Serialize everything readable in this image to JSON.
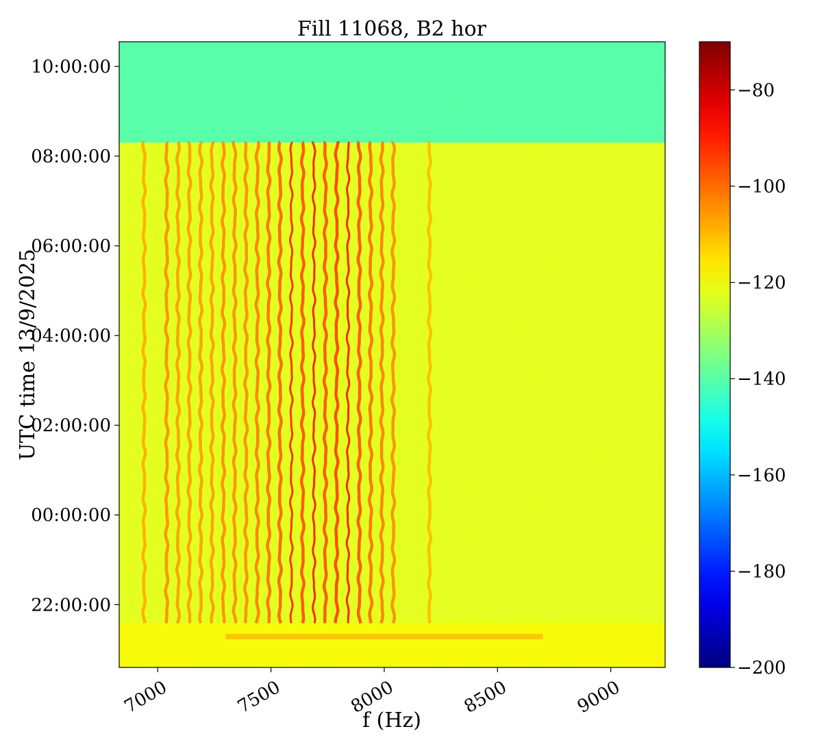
{
  "chart_data": {
    "type": "heatmap",
    "title": "Fill 11068, B2 hor",
    "xlabel": "f (Hz)",
    "ylabel": "UTC time 13/9/2025",
    "x_ticks": [
      {
        "value": 7000,
        "label": "7000"
      },
      {
        "value": 7500,
        "label": "7500"
      },
      {
        "value": 8000,
        "label": "8000"
      },
      {
        "value": 8500,
        "label": "8500"
      },
      {
        "value": 9000,
        "label": "9000"
      }
    ],
    "xlim": [
      6830,
      9240
    ],
    "y_ticks": [
      {
        "value": 10,
        "label": "10:00:00"
      },
      {
        "value": 8,
        "label": "08:00:00"
      },
      {
        "value": 6,
        "label": "06:00:00"
      },
      {
        "value": 4,
        "label": "04:00:00"
      },
      {
        "value": 2,
        "label": "02:00:00"
      },
      {
        "value": 0,
        "label": "00:00:00"
      },
      {
        "value": -2,
        "label": "22:00:00"
      }
    ],
    "ylim": [
      -3.4,
      10.55
    ],
    "colorbar": {
      "colormap": "jet",
      "range": [
        -200,
        -70
      ],
      "ticks": [
        {
          "value": -80,
          "label": "−80"
        },
        {
          "value": -100,
          "label": "−100"
        },
        {
          "value": -120,
          "label": "−120"
        },
        {
          "value": -140,
          "label": "−140"
        },
        {
          "value": -160,
          "label": "−160"
        },
        {
          "value": -180,
          "label": "−180"
        },
        {
          "value": -200,
          "label": "−200"
        }
      ]
    },
    "regions": [
      {
        "from_time": 8.3,
        "to_time": 10.55,
        "level_db": -140
      },
      {
        "from_time": -3.4,
        "to_time": 8.3,
        "level_db": -122
      }
    ],
    "harmonic_lines": {
      "time_range": [
        -2.5,
        8.3
      ],
      "freqs": [
        6940,
        7040,
        7090,
        7140,
        7190,
        7240,
        7290,
        7340,
        7390,
        7440,
        7490,
        7540,
        7590,
        7640,
        7690,
        7740,
        7790,
        7840,
        7890,
        7940,
        7990,
        8040,
        8200
      ],
      "level_db": [
        -108,
        -104,
        -106,
        -106,
        -106,
        -106,
        -104,
        -104,
        -104,
        -102,
        -100,
        -98,
        -90,
        -96,
        -88,
        -96,
        -94,
        -88,
        -96,
        -100,
        -102,
        -104,
        -110
      ]
    }
  }
}
